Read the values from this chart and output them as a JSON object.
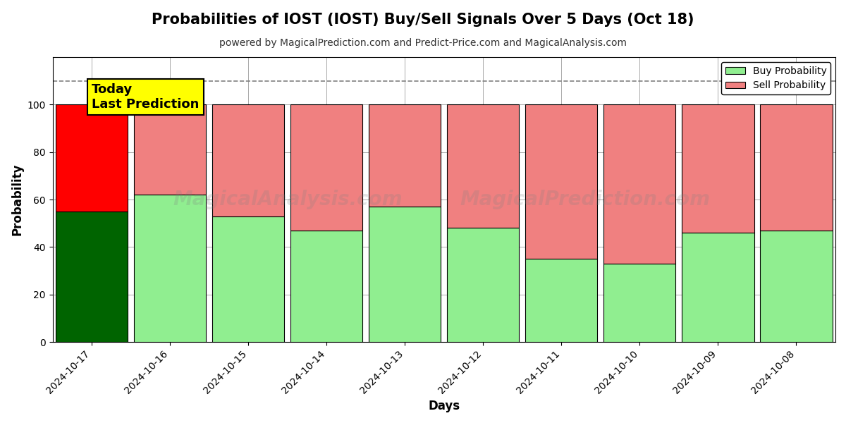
{
  "title": "Probabilities of IOST (IOST) Buy/Sell Signals Over 5 Days (Oct 18)",
  "subtitle": "powered by MagicalPrediction.com and Predict-Price.com and MagicalAnalysis.com",
  "xlabel": "Days",
  "ylabel": "Probability",
  "dates": [
    "2024-10-17",
    "2024-10-16",
    "2024-10-15",
    "2024-10-14",
    "2024-10-13",
    "2024-10-12",
    "2024-10-11",
    "2024-10-10",
    "2024-10-09",
    "2024-10-08"
  ],
  "buy_values": [
    55,
    62,
    53,
    47,
    57,
    48,
    35,
    33,
    46,
    47
  ],
  "sell_values": [
    45,
    38,
    47,
    53,
    43,
    52,
    65,
    67,
    54,
    53
  ],
  "today_buy_color": "#006400",
  "today_sell_color": "#FF0000",
  "buy_color": "#90EE90",
  "sell_color": "#F08080",
  "today_label": "Today\nLast Prediction",
  "legend_buy": "Buy Probability",
  "legend_sell": "Sell Probability",
  "ylim": [
    0,
    120
  ],
  "dashed_line_y": 110,
  "bar_edge_color": "#000000",
  "background_color": "#ffffff",
  "grid_color": "#aaaaaa",
  "title_fontsize": 15,
  "subtitle_fontsize": 10,
  "bar_width": 0.92
}
